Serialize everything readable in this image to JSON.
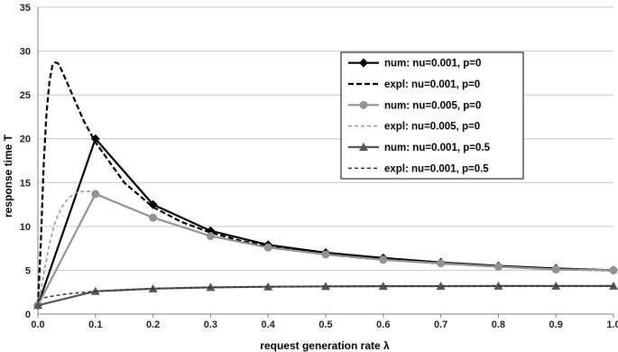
{
  "chart_data": {
    "type": "line",
    "xlabel": "request generation rate λ",
    "ylabel": "response time T",
    "xlim": [
      0,
      1
    ],
    "ylim": [
      0,
      35
    ],
    "xticks": [
      "0.0",
      "0.1",
      "0.2",
      "0.3",
      "0.4",
      "0.5",
      "0.6",
      "0.7",
      "0.8",
      "0.9",
      "1.0"
    ],
    "yticks": [
      "0",
      "5",
      "10",
      "15",
      "20",
      "25",
      "30",
      "35"
    ],
    "grid": "horizontal",
    "legend_position": "top-right",
    "series": [
      {
        "name": "num: nu=0.001, p=0",
        "style": "solid",
        "color": "#000000",
        "marker": "diamond",
        "x": [
          0,
          0.1,
          0.2,
          0.3,
          0.4,
          0.5,
          0.6,
          0.7,
          0.8,
          0.9,
          1.0
        ],
        "y": [
          1,
          20,
          12.5,
          9.5,
          7.9,
          7.0,
          6.4,
          5.9,
          5.5,
          5.2,
          5.0
        ]
      },
      {
        "name": "expl: nu=0.001, p=0",
        "style": "dashed",
        "color": "#000000",
        "marker": "none",
        "x": [
          0,
          0.005,
          0.01,
          0.015,
          0.02,
          0.025,
          0.03,
          0.035,
          0.04,
          0.05,
          0.06,
          0.07,
          0.08,
          0.09,
          0.1,
          0.15,
          0.2,
          0.25,
          0.3,
          0.35,
          0.4,
          0.5,
          0.6,
          0.7,
          0.8,
          0.9,
          1.0
        ],
        "y": [
          1,
          8,
          17,
          23,
          26.5,
          28.3,
          28.7,
          28.6,
          28.0,
          26.5,
          25.0,
          23.5,
          22.0,
          20.8,
          19.6,
          15.0,
          12.2,
          10.5,
          9.3,
          8.4,
          7.7,
          6.8,
          6.2,
          5.8,
          5.4,
          5.2,
          5.0
        ]
      },
      {
        "name": "num: nu=0.005, p=0",
        "style": "solid",
        "color": "#939393",
        "marker": "circle",
        "x": [
          0,
          0.1,
          0.2,
          0.3,
          0.4,
          0.5,
          0.6,
          0.7,
          0.8,
          0.9,
          1.0
        ],
        "y": [
          1,
          13.7,
          11.0,
          8.9,
          7.6,
          6.8,
          6.2,
          5.8,
          5.4,
          5.1,
          5.0
        ]
      },
      {
        "name": "expl: nu=0.005, p=0",
        "style": "dashed",
        "color": "#939393",
        "marker": "none",
        "x": [
          0,
          0.01,
          0.02,
          0.03,
          0.04,
          0.05,
          0.06,
          0.07,
          0.08,
          0.09,
          0.1,
          0.15,
          0.2,
          0.3,
          0.4,
          0.5,
          0.6,
          0.7,
          0.8,
          0.9,
          1.0
        ],
        "y": [
          1,
          4.5,
          8.0,
          10.5,
          12.0,
          13.0,
          13.6,
          13.9,
          14.0,
          14.0,
          13.8,
          12.3,
          11.0,
          8.9,
          7.6,
          6.8,
          6.2,
          5.7,
          5.4,
          5.1,
          4.9
        ]
      },
      {
        "name": "num: nu=0.001, p=0.5",
        "style": "solid",
        "color": "#555555",
        "marker": "triangle",
        "x": [
          0,
          0.1,
          0.2,
          0.3,
          0.4,
          0.5,
          0.6,
          0.7,
          0.8,
          0.9,
          1.0
        ],
        "y": [
          1,
          2.6,
          2.9,
          3.05,
          3.12,
          3.16,
          3.18,
          3.19,
          3.2,
          3.2,
          3.2
        ]
      },
      {
        "name": "expl: nu=0.001, p=0.5",
        "style": "dashed",
        "color": "#333333",
        "marker": "none",
        "x": [
          0,
          0.02,
          0.05,
          0.1,
          0.2,
          0.3,
          0.4,
          0.5,
          0.6,
          0.7,
          0.8,
          0.9,
          1.0
        ],
        "y": [
          1.7,
          2.0,
          2.3,
          2.6,
          2.9,
          3.05,
          3.12,
          3.16,
          3.18,
          3.19,
          3.2,
          3.2,
          3.2
        ]
      }
    ]
  }
}
